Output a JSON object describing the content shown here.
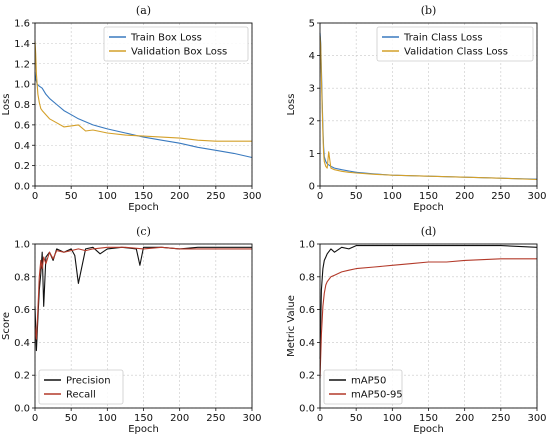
{
  "chart_data": [
    {
      "type": "line",
      "panel_label": "(a)",
      "xlabel": "Epoch",
      "ylabel": "Loss",
      "xlim": [
        0,
        300
      ],
      "ylim": [
        0,
        1.6
      ],
      "xticks": [
        0,
        50,
        100,
        150,
        200,
        250,
        300
      ],
      "yticks": [
        0.0,
        0.2,
        0.4,
        0.6,
        0.8,
        1.0,
        1.2,
        1.4,
        1.6
      ],
      "ytick_labels": [
        "0.0",
        "0.2",
        "0.4",
        "0.6",
        "0.8",
        "1.0",
        "1.2",
        "1.4",
        "1.6"
      ],
      "grid": true,
      "legend_position": "top-right",
      "series": [
        {
          "name": "Train Box Loss",
          "color": "#3a7abf",
          "x": [
            0,
            1,
            3,
            6,
            10,
            15,
            20,
            30,
            40,
            50,
            60,
            80,
            100,
            125,
            150,
            175,
            200,
            225,
            250,
            275,
            300
          ],
          "y": [
            1.12,
            1.05,
            1.0,
            0.98,
            0.96,
            0.9,
            0.86,
            0.8,
            0.74,
            0.7,
            0.66,
            0.6,
            0.56,
            0.52,
            0.48,
            0.45,
            0.42,
            0.38,
            0.35,
            0.32,
            0.28
          ]
        },
        {
          "name": "Validation Box Loss",
          "color": "#d4a02a",
          "x": [
            0,
            1,
            2,
            4,
            6,
            8,
            10,
            15,
            20,
            30,
            40,
            50,
            60,
            70,
            80,
            100,
            125,
            150,
            175,
            200,
            225,
            250,
            275,
            300
          ],
          "y": [
            1.42,
            1.3,
            1.1,
            0.9,
            0.82,
            0.76,
            0.74,
            0.7,
            0.66,
            0.62,
            0.58,
            0.59,
            0.6,
            0.54,
            0.55,
            0.52,
            0.5,
            0.49,
            0.48,
            0.47,
            0.45,
            0.44,
            0.44,
            0.44
          ]
        }
      ]
    },
    {
      "type": "line",
      "panel_label": "(b)",
      "xlabel": "Epoch",
      "ylabel": "Loss",
      "xlim": [
        0,
        300
      ],
      "ylim": [
        0,
        5
      ],
      "xticks": [
        0,
        50,
        100,
        150,
        200,
        250,
        300
      ],
      "yticks": [
        0,
        1,
        2,
        3,
        4,
        5
      ],
      "ytick_labels": [
        "0",
        "1",
        "2",
        "3",
        "4",
        "5"
      ],
      "grid": true,
      "legend_position": "top-right",
      "series": [
        {
          "name": "Train Class Loss",
          "color": "#3a7abf",
          "x": [
            0,
            1,
            2,
            3,
            4,
            5,
            6,
            8,
            10,
            15,
            20,
            30,
            40,
            50,
            75,
            100,
            150,
            200,
            250,
            300
          ],
          "y": [
            4.7,
            4.4,
            3.6,
            2.6,
            1.8,
            1.2,
            0.9,
            0.75,
            0.68,
            0.6,
            0.55,
            0.5,
            0.46,
            0.42,
            0.37,
            0.33,
            0.3,
            0.27,
            0.24,
            0.21
          ]
        },
        {
          "name": "Validation Class Loss",
          "color": "#d4a02a",
          "x": [
            0,
            1,
            2,
            3,
            4,
            5,
            6,
            8,
            10,
            12,
            15,
            20,
            30,
            40,
            50,
            75,
            100,
            150,
            200,
            250,
            300
          ],
          "y": [
            4.6,
            4.3,
            3.3,
            2.4,
            1.6,
            1.0,
            0.75,
            0.6,
            0.55,
            1.05,
            0.55,
            0.5,
            0.45,
            0.42,
            0.4,
            0.36,
            0.33,
            0.3,
            0.27,
            0.24,
            0.2
          ]
        }
      ]
    },
    {
      "type": "line",
      "panel_label": "(c)",
      "xlabel": "Epoch",
      "ylabel": "Score",
      "xlim": [
        0,
        300
      ],
      "ylim": [
        0,
        1.0
      ],
      "xticks": [
        0,
        50,
        100,
        150,
        200,
        250,
        300
      ],
      "yticks": [
        0.0,
        0.2,
        0.4,
        0.6,
        0.8,
        1.0
      ],
      "ytick_labels": [
        "0.0",
        "0.2",
        "0.4",
        "0.6",
        "0.8",
        "1.0"
      ],
      "grid": true,
      "legend_position": "bottom-left",
      "series": [
        {
          "name": "Precision",
          "color": "#111111",
          "x": [
            0,
            2,
            4,
            6,
            8,
            10,
            12,
            15,
            20,
            25,
            30,
            40,
            50,
            55,
            60,
            70,
            80,
            90,
            100,
            120,
            140,
            145,
            150,
            175,
            200,
            225,
            250,
            275,
            300
          ],
          "y": [
            0.62,
            0.35,
            0.55,
            0.72,
            0.82,
            0.95,
            0.62,
            0.92,
            0.95,
            0.9,
            0.97,
            0.95,
            0.97,
            0.93,
            0.76,
            0.97,
            0.98,
            0.94,
            0.97,
            0.98,
            0.97,
            0.87,
            0.98,
            0.98,
            0.97,
            0.98,
            0.98,
            0.98,
            0.98
          ]
        },
        {
          "name": "Recall",
          "color": "#b33a2a",
          "x": [
            0,
            2,
            4,
            6,
            8,
            10,
            12,
            15,
            20,
            25,
            30,
            40,
            50,
            60,
            70,
            80,
            100,
            125,
            150,
            175,
            200,
            225,
            250,
            275,
            300
          ],
          "y": [
            0.5,
            0.42,
            0.6,
            0.8,
            0.9,
            0.85,
            0.92,
            0.88,
            0.95,
            0.91,
            0.96,
            0.95,
            0.96,
            0.97,
            0.96,
            0.97,
            0.98,
            0.98,
            0.97,
            0.98,
            0.97,
            0.97,
            0.97,
            0.97,
            0.97
          ]
        }
      ]
    },
    {
      "type": "line",
      "panel_label": "(d)",
      "xlabel": "Epoch",
      "ylabel": "Metric Value",
      "xlim": [
        0,
        300
      ],
      "ylim": [
        0,
        1.0
      ],
      "xticks": [
        0,
        50,
        100,
        150,
        200,
        250,
        300
      ],
      "yticks": [
        0.0,
        0.2,
        0.4,
        0.6,
        0.8,
        1.0
      ],
      "ytick_labels": [
        "0.0",
        "0.2",
        "0.4",
        "0.6",
        "0.8",
        "1.0"
      ],
      "grid": true,
      "legend_position": "bottom-left",
      "series": [
        {
          "name": "mAP50",
          "color": "#111111",
          "x": [
            0,
            2,
            4,
            6,
            8,
            10,
            15,
            20,
            30,
            40,
            50,
            75,
            100,
            150,
            200,
            250,
            300
          ],
          "y": [
            0.3,
            0.72,
            0.85,
            0.9,
            0.92,
            0.94,
            0.97,
            0.95,
            0.98,
            0.97,
            0.99,
            0.99,
            0.99,
            0.99,
            0.99,
            0.99,
            0.98
          ]
        },
        {
          "name": "mAP50-95",
          "color": "#b33a2a",
          "x": [
            0,
            2,
            4,
            6,
            8,
            10,
            15,
            20,
            30,
            40,
            50,
            75,
            100,
            125,
            150,
            175,
            200,
            250,
            300
          ],
          "y": [
            0.18,
            0.45,
            0.62,
            0.7,
            0.75,
            0.77,
            0.8,
            0.81,
            0.83,
            0.84,
            0.85,
            0.86,
            0.87,
            0.88,
            0.89,
            0.89,
            0.9,
            0.91,
            0.91
          ]
        }
      ]
    }
  ]
}
